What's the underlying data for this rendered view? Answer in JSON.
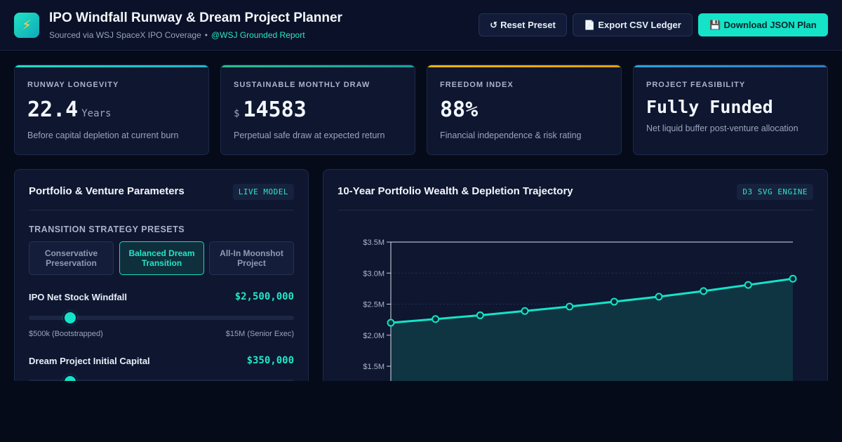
{
  "header": {
    "logo_icon": "lightning-bolt-icon",
    "title": "IPO Windfall Runway & Dream Project Planner",
    "subtitle_source": "Sourced via WSJ SpaceX IPO Coverage",
    "subtitle_sep": "•",
    "subtitle_link": "@WSJ Grounded Report",
    "buttons": {
      "reset": {
        "icon": "↺",
        "label": "Reset Preset"
      },
      "export": {
        "icon": "📄",
        "label": "Export CSV Ledger"
      },
      "download": {
        "icon": "💾",
        "label": "Download JSON Plan"
      }
    }
  },
  "stats": [
    {
      "label": "RUNWAY LONGEVITY",
      "prefix": "",
      "value": "22.4",
      "unit": "Years",
      "desc": "Before capital depletion at current burn",
      "accent": "#14e3c8"
    },
    {
      "label": "SUSTAINABLE MONTHLY DRAW",
      "prefix": "$",
      "value": "14583",
      "unit": "",
      "desc": "Perpetual safe draw at expected return",
      "accent": "#22c58b"
    },
    {
      "label": "FREEDOM INDEX",
      "prefix": "",
      "value": "88%",
      "unit": "",
      "desc": "Financial independence & risk rating",
      "accent": "#f5b400"
    },
    {
      "label": "PROJECT FEASIBILITY",
      "prefix": "",
      "value": "Fully Funded",
      "unit": "",
      "desc": "Net liquid buffer post-venture allocation",
      "accent": "#2ea3d8"
    }
  ],
  "params_panel": {
    "title": "Portfolio & Venture Parameters",
    "tag": "LIVE MODEL",
    "presets_label": "TRANSITION STRATEGY PRESETS",
    "presets": [
      {
        "label": "Conservative Preservation",
        "active": false
      },
      {
        "label": "Balanced Dream Transition",
        "active": true
      },
      {
        "label": "All-In Moonshot Project",
        "active": false
      }
    ],
    "sliders": [
      {
        "label": "IPO Net Stock Windfall",
        "value": "$2,500,000",
        "min_label": "$500k (Bootstrapped)",
        "max_label": "$15M (Senior Exec)",
        "position": 0.155
      },
      {
        "label": "Dream Project Initial Capital",
        "value": "$350,000",
        "position": 0.155
      }
    ]
  },
  "chart_panel": {
    "title": "10-Year Portfolio Wealth & Depletion Trajectory",
    "tag": "D3 SVG ENGINE"
  },
  "chart_data": {
    "type": "area",
    "title": "10-Year Portfolio Wealth & Depletion Trajectory",
    "xlabel": "",
    "ylabel": "",
    "y_tick_labels": [
      "$3.5M",
      "$3.0M",
      "$2.5M",
      "$2.0M",
      "$1.5M"
    ],
    "y_ticks": [
      3.5,
      3.0,
      2.5,
      2.0,
      1.5
    ],
    "ylim": [
      1.0,
      3.5
    ],
    "x": [
      0,
      1,
      2,
      3,
      4,
      5,
      6,
      7,
      8,
      9
    ],
    "values": [
      2.2,
      2.26,
      2.32,
      2.39,
      2.46,
      2.54,
      2.62,
      2.71,
      2.81,
      2.91
    ],
    "grid": true,
    "line_color": "#14e3c8",
    "fill_color": "#0f3a45"
  },
  "colors": {
    "accent": "#14e3c8",
    "background": "#060b1a",
    "panel": "#0e1630"
  }
}
